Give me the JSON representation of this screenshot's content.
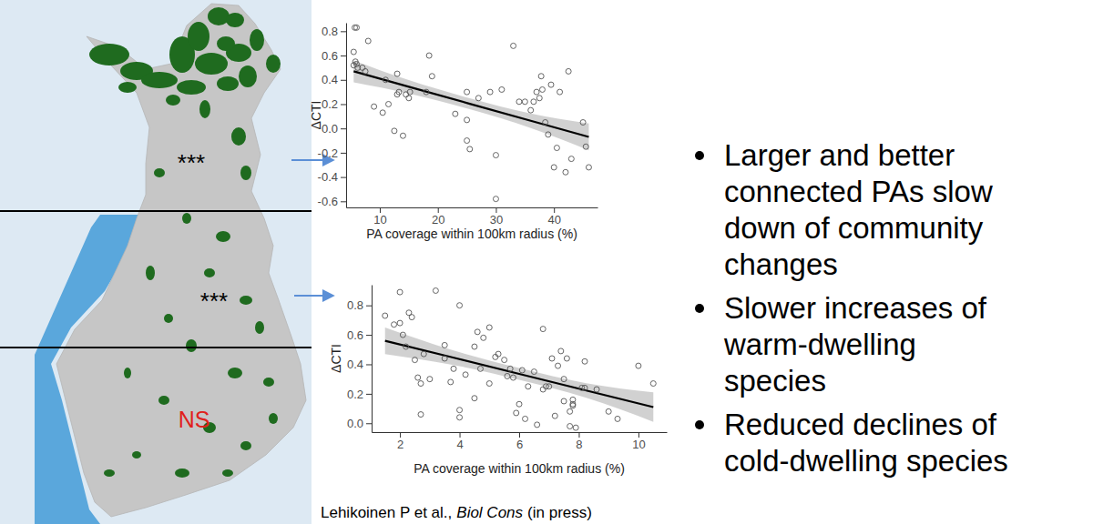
{
  "chart_data": [
    {
      "type": "scatter",
      "marker": "circle",
      "x_label": "PA coverage within 100km radius (%)",
      "y_label": "ΔCTI",
      "xlim": [
        4.2,
        47.5
      ],
      "ylim": [
        -0.65,
        0.87
      ],
      "xticks": [
        10,
        20,
        30,
        40
      ],
      "yticks": [
        -0.6,
        -0.4,
        -0.2,
        {
          "value": 0,
          "label": "0.0"
        },
        0.2,
        0.4,
        0.6,
        0.8
      ],
      "x": [
        5.5,
        5.7,
        6,
        5.8,
        6,
        5.5,
        6.2,
        7,
        8,
        7.5,
        9,
        10.5,
        11,
        11.5,
        12.5,
        13,
        13,
        13.3,
        14,
        14.5,
        15,
        15.2,
        18,
        18.5,
        19,
        23,
        25,
        25,
        25,
        25.5,
        27,
        29,
        30,
        30,
        31,
        33,
        34,
        35,
        36,
        36.5,
        37,
        37.5,
        37.8,
        38,
        38.5,
        39,
        39.5,
        40,
        40.5,
        41,
        42,
        42.5,
        43,
        45,
        45.5,
        46
      ],
      "values": [
        0.63,
        0.83,
        0.83,
        0.55,
        0.53,
        0.52,
        0.5,
        0.5,
        0.72,
        0.47,
        0.18,
        0.13,
        0.4,
        0.2,
        -0.02,
        0.45,
        0.28,
        0.3,
        -0.06,
        0.28,
        0.25,
        0.3,
        0.3,
        0.6,
        0.43,
        0.12,
        0.3,
        0.07,
        -0.1,
        -0.17,
        0.25,
        0.3,
        -0.22,
        -0.58,
        0.32,
        0.68,
        0.22,
        0.22,
        0.15,
        0.22,
        0.3,
        0.25,
        0.43,
        0.32,
        0.05,
        -0.05,
        0.36,
        -0.32,
        -0.16,
        0.3,
        -0.36,
        0.47,
        -0.25,
        0.05,
        -0.15,
        -0.32
      ],
      "fit": {
        "x": [
          5.5,
          15,
          25.5,
          36,
          46
        ],
        "values": [
          0.47,
          0.343,
          0.203,
          0.063,
          -0.07
        ],
        "lower": [
          0.38,
          0.288,
          0.158,
          0.003,
          -0.18
        ],
        "upper": [
          0.56,
          0.398,
          0.248,
          0.123,
          0.04
        ]
      }
    },
    {
      "type": "scatter",
      "marker": "circle",
      "x_label": "PA coverage within 100km radius (%)",
      "y_label": "ΔCTI",
      "xlim": [
        1.05,
        10.95
      ],
      "ylim": [
        -0.06,
        0.94
      ],
      "xticks": [
        2,
        4,
        6,
        8,
        10
      ],
      "yticks": [
        {
          "value": 0,
          "label": "0.0"
        },
        0.2,
        0.4,
        0.6,
        0.8
      ],
      "x": [
        1.5,
        1.8,
        2,
        2,
        2.1,
        2.2,
        2.3,
        2.4,
        2.5,
        2.6,
        2.7,
        2.7,
        2.8,
        3,
        3.2,
        3.5,
        3.5,
        3.7,
        3.8,
        4,
        4,
        4,
        4.2,
        4.5,
        4.5,
        4.6,
        4.7,
        4.8,
        5,
        5,
        5.2,
        5.3,
        5.5,
        5.6,
        5.7,
        5.8,
        5.9,
        6,
        6.1,
        6.2,
        6.3,
        6.5,
        6.6,
        6.8,
        6.8,
        6.9,
        7,
        7.1,
        7.2,
        7.3,
        7.4,
        7.5,
        7.5,
        7.6,
        7.7,
        7.7,
        7.8,
        7.8,
        7.9,
        8.1,
        8.2,
        8.2,
        8.6,
        9,
        9.3,
        10,
        10.5,
        7.8
      ],
      "values": [
        0.73,
        0.67,
        0.89,
        0.68,
        0.6,
        0.52,
        0.75,
        0.72,
        0.43,
        0.31,
        0.27,
        0.06,
        0.47,
        0.3,
        0.9,
        0.53,
        0.44,
        0.28,
        0.37,
        0.8,
        0.09,
        0.04,
        0.33,
        0.17,
        0.52,
        0.62,
        0.37,
        0.58,
        0.65,
        0.27,
        0.45,
        0.47,
        0.43,
        0.32,
        0.37,
        0.31,
        0.07,
        0.13,
        0.36,
        0.03,
        0.25,
        0.35,
        -0.01,
        0.64,
        0.23,
        0.25,
        0.25,
        0.44,
        0.05,
        0.39,
        0.49,
        0.15,
        0.3,
        0.44,
        0.08,
        -0.02,
        0.16,
        0.13,
        -0.03,
        0.24,
        0.24,
        0.42,
        0.23,
        0.08,
        0.03,
        0.39,
        0.27,
        0.12
      ],
      "fit": {
        "x": [
          1.5,
          3.75,
          6,
          8.25,
          10.5
        ],
        "values": [
          0.56,
          0.4475,
          0.335,
          0.2225,
          0.11
        ],
        "lower": [
          0.47,
          0.3975,
          0.295,
          0.1725,
          0.01
        ],
        "upper": [
          0.65,
          0.4975,
          0.375,
          0.2725,
          0.21
        ]
      }
    }
  ],
  "map_labels": [
    "***",
    "***",
    "NS"
  ],
  "bullets": [
    [
      "Larger and better",
      "connected PAs slow",
      "down of community",
      "changes"
    ],
    [
      "Slower increases of",
      "warm-dwelling",
      "species"
    ],
    [
      "Reduced declines of",
      "cold-dwelling species"
    ]
  ],
  "citation_authors": "Lehikoinen P et al.,",
  "citation_journal": "Biol Cons",
  "citation_note": "(in press)"
}
